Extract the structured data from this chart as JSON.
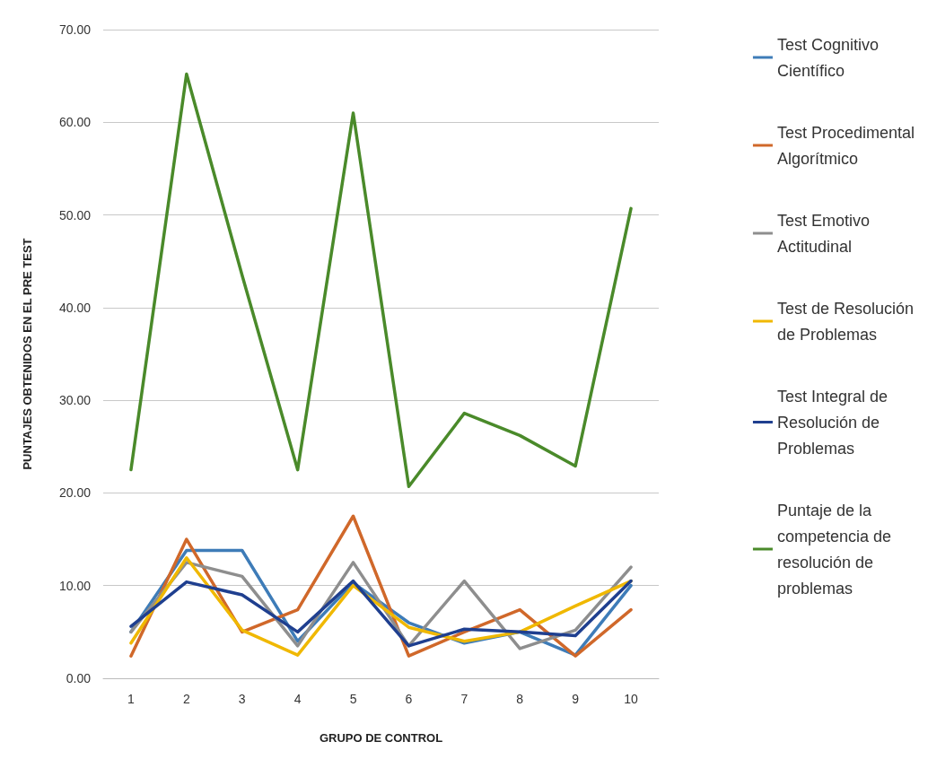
{
  "chart_data": {
    "type": "line",
    "xlabel": "GRUPO DE CONTROL",
    "ylabel": "PUNTAJES OBTENIDOS EN EL PRE TEST",
    "categories": [
      "1",
      "2",
      "3",
      "4",
      "5",
      "6",
      "7",
      "8",
      "9",
      "10"
    ],
    "ylim": [
      0,
      70
    ],
    "yticks": [
      {
        "value": 0,
        "label": "0.00"
      },
      {
        "value": 10,
        "label": "10.00"
      },
      {
        "value": 20,
        "label": "20.00"
      },
      {
        "value": 30,
        "label": "30.00"
      },
      {
        "value": 40,
        "label": "40.00"
      },
      {
        "value": 50,
        "label": "50.00"
      },
      {
        "value": 60,
        "label": "60.00"
      },
      {
        "value": 70,
        "label": "70.00"
      }
    ],
    "grid": "y",
    "legend": "right",
    "marker": "none",
    "line_style": "solid",
    "series": [
      {
        "name": "Test Cognitivo Científico",
        "color": "#3e7cb8",
        "values": [
          5,
          13.8,
          13.8,
          4,
          10.3,
          6,
          3.8,
          5,
          2.5,
          10
        ]
      },
      {
        "name": "Test Procedimental Algorítmico",
        "color": "#d0682a",
        "values": [
          2.4,
          15,
          5,
          7.4,
          17.5,
          2.4,
          5,
          7.4,
          2.4,
          7.4
        ]
      },
      {
        "name": "Test Emotivo Actitudinal",
        "color": "#8e8e8e",
        "values": [
          5,
          12.5,
          11,
          3.5,
          12.5,
          3.5,
          10.5,
          3.2,
          5.2,
          12
        ]
      },
      {
        "name": "Test de Resolución de Problemas",
        "color": "#f0b800",
        "values": [
          3.8,
          13,
          5.2,
          2.5,
          10,
          5.5,
          4,
          5,
          7.8,
          10.5
        ]
      },
      {
        "name": "Test Integral de Resolución de Problemas",
        "color": "#1f3f8f",
        "values": [
          5.6,
          10.4,
          9,
          5,
          10.5,
          3.5,
          5.3,
          5,
          4.6,
          10.5
        ]
      },
      {
        "name": "Puntaje de la competencia de resolución de problemas",
        "color": "#4a8a2a",
        "values": [
          22.5,
          65.2,
          43.5,
          22.5,
          61,
          20.7,
          28.6,
          26.2,
          22.9,
          50.7
        ]
      }
    ]
  }
}
